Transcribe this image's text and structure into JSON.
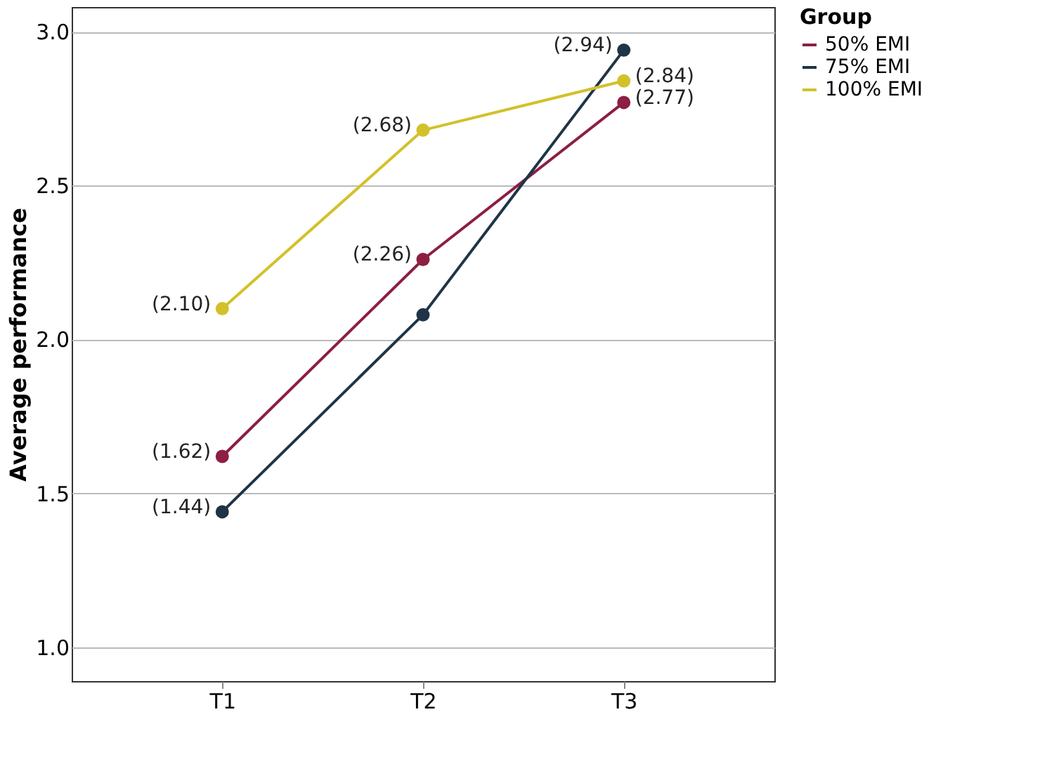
{
  "chart_data": {
    "type": "line",
    "ylabel": "Average performance",
    "legend_title": "Group",
    "legend": "top right",
    "grid": "y",
    "marker": "circle",
    "line_style": "solid",
    "categories": [
      "T1",
      "T2",
      "T3"
    ],
    "ylim": [
      0.89,
      3.08
    ],
    "yticks": [
      {
        "value": 1.0,
        "label": "1.0"
      },
      {
        "value": 1.5,
        "label": "1.5"
      },
      {
        "value": 2.0,
        "label": "2.0"
      },
      {
        "value": 2.5,
        "label": "2.5"
      },
      {
        "value": 3.0,
        "label": "3.0"
      }
    ],
    "series": [
      {
        "name": "50% EMI",
        "color": "#8c1f42",
        "values": [
          1.62,
          2.26,
          2.77
        ],
        "value_labels": [
          "(1.62)",
          "(2.26)",
          "(2.77)"
        ]
      },
      {
        "name": "75% EMI",
        "color": "#1f3446",
        "values": [
          1.44,
          2.08,
          2.94
        ],
        "value_labels": [
          "(1.44)",
          null,
          "(2.94)"
        ]
      },
      {
        "name": "100% EMI",
        "color": "#d2c12a",
        "values": [
          2.1,
          2.68,
          2.84
        ],
        "value_labels": [
          "(2.10)",
          "(2.68)",
          "(2.84)"
        ]
      }
    ]
  }
}
